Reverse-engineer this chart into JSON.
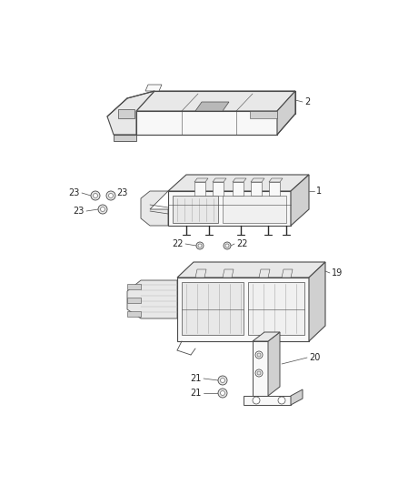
{
  "bg_color": "#ffffff",
  "line_color": "#4a4a4a",
  "line_color_dark": "#2a2a2a",
  "fill_light": "#f8f8f8",
  "fill_mid": "#e8e8e8",
  "fill_dark": "#d0d0d0",
  "fill_darker": "#b8b8b8",
  "text_color": "#222222",
  "fig_width": 4.38,
  "fig_height": 5.33,
  "dpi": 100,
  "label_fontsize": 7.0,
  "label_fontsize_sm": 6.5
}
